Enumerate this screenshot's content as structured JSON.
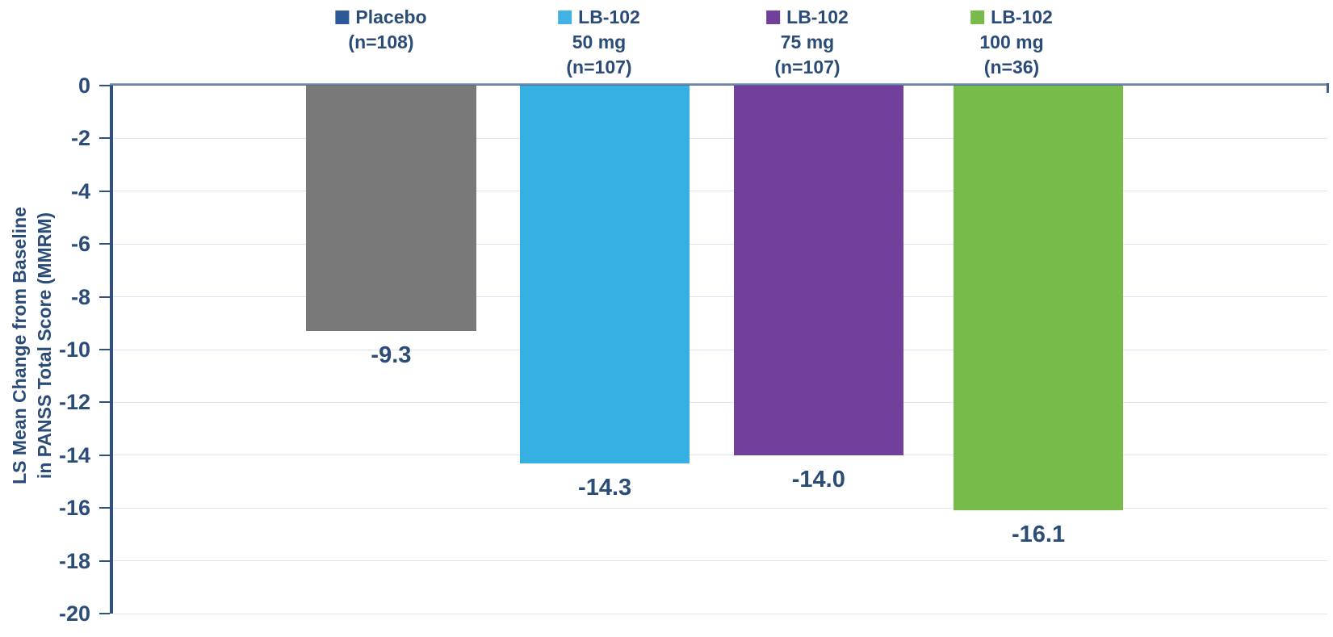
{
  "chart_data": {
    "type": "bar",
    "title": "",
    "xlabel": "",
    "ylabel": "LS Mean Change from Baseline in PANSS Total Score (MMRM)",
    "ylabel_lines": [
      "LS Mean Change from Baseline",
      "in PANSS Total Score (MMRM)"
    ],
    "ylim": [
      -20,
      0
    ],
    "grid": true,
    "legend_position": "top",
    "categories": [
      "Placebo (n=108)",
      "LB-102 50 mg (n=107)",
      "LB-102 75 mg (n=107)",
      "LB-102 100 mg (n=36)"
    ],
    "values": [
      -9.3,
      -14.3,
      -14.0,
      -16.1
    ],
    "yticks": [
      {
        "value": 0,
        "label": "0"
      },
      {
        "value": -2,
        "label": "-2"
      },
      {
        "value": -4,
        "label": "-4"
      },
      {
        "value": -6,
        "label": "-6"
      },
      {
        "value": -8,
        "label": "-8"
      },
      {
        "value": -10,
        "label": "-10"
      },
      {
        "value": -12,
        "label": "-12"
      },
      {
        "value": -14,
        "label": "-14"
      },
      {
        "value": -16,
        "label": "-16"
      },
      {
        "value": -18,
        "label": "-18"
      },
      {
        "value": -20,
        "label": "-20"
      }
    ],
    "bars": [
      {
        "name": "placebo",
        "legend_lines": [
          "Placebo",
          "(n=108)"
        ],
        "legend_color": "#2D5A96",
        "bar_color": "#797979",
        "value": -9.3,
        "label": "-9.3"
      },
      {
        "name": "lb102-50mg",
        "legend_lines": [
          "LB-102",
          "50 mg",
          "(n=107)"
        ],
        "legend_color": "#41B1E6",
        "bar_color": "#36AFE3",
        "value": -14.3,
        "label": "-14.3"
      },
      {
        "name": "lb102-75mg",
        "legend_lines": [
          "LB-102",
          "75 mg",
          "(n=107)"
        ],
        "legend_color": "#70409A",
        "bar_color": "#70409A",
        "value": -14.0,
        "label": "-14.0"
      },
      {
        "name": "lb102-100mg",
        "legend_lines": [
          "LB-102",
          "100 mg",
          "(n=36)"
        ],
        "legend_color": "#77BB4B",
        "bar_color": "#77BB4B",
        "value": -16.1,
        "label": "-16.1"
      }
    ],
    "colors": {
      "axis": "#31507A",
      "x_axis_line": "#44618A",
      "gridline": "#DCE6F2",
      "text": "#2B4C77",
      "background": "#FFFFFF"
    }
  }
}
